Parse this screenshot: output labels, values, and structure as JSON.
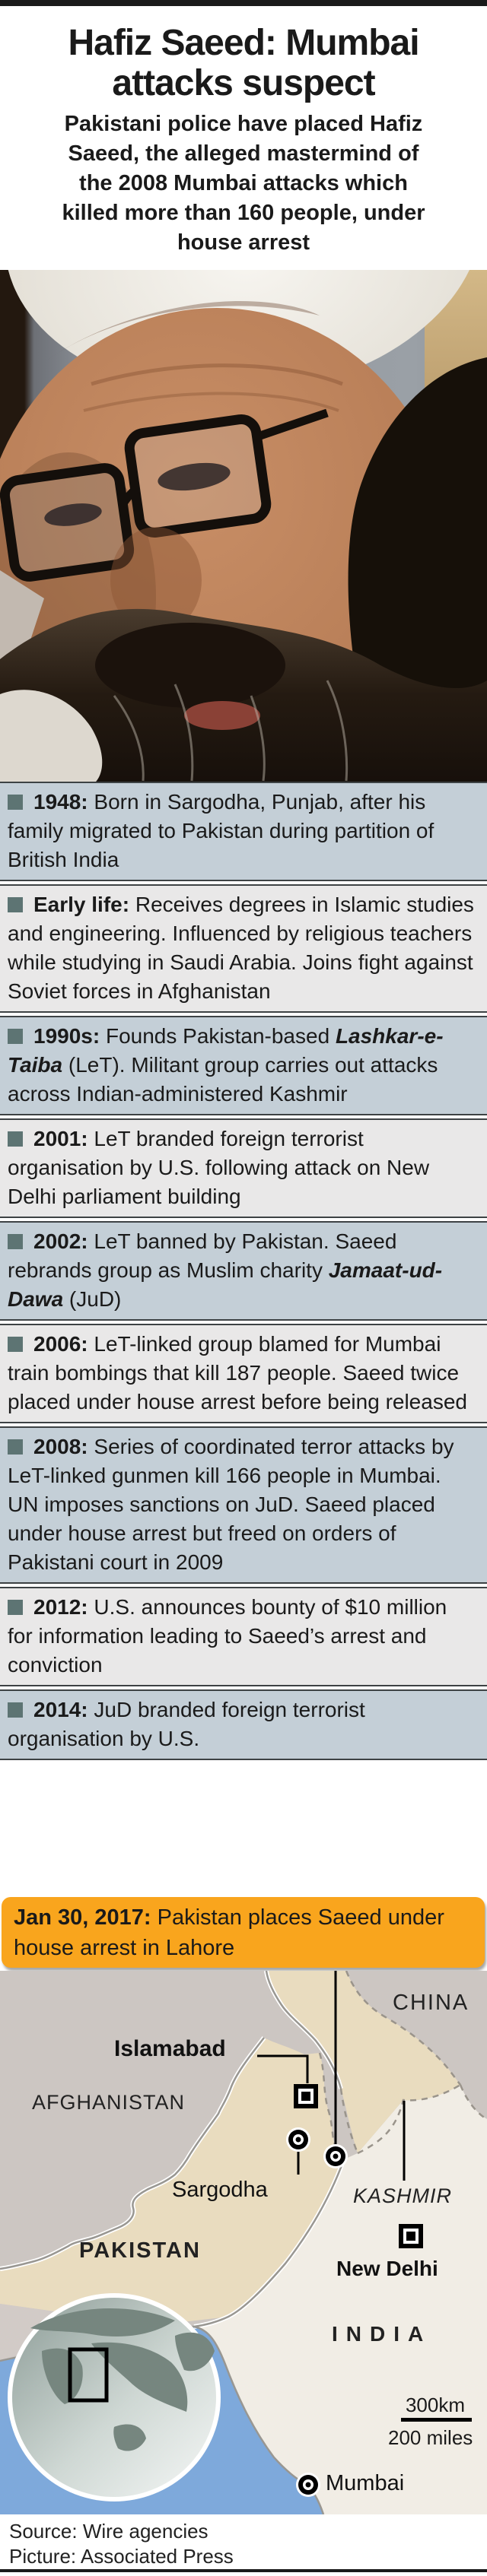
{
  "masthead": {
    "title": "Hafiz Saeed: Mumbai\nattacks suspect",
    "subtitle": "Pakistani police have placed Hafiz\nSaeed, the alleged mastermind of\nthe 2008 Mumbai attacks which\nkilled more than 160 people, under\nhouse arrest"
  },
  "timeline": [
    {
      "variant": "blue",
      "segments": [
        {
          "text": "1948:",
          "style": "bold"
        },
        {
          "text": " Born in Sargodha, Punjab, after his family migrated to Pakistan during partition of British India",
          "style": "normal"
        }
      ]
    },
    {
      "variant": "gray",
      "segments": [
        {
          "text": "Early life:",
          "style": "bold"
        },
        {
          "text": " Receives degrees in Islamic studies and engineering. Influenced by religious teachers while studying in Saudi Arabia. Joins fight against Soviet forces in Afghanistan",
          "style": "normal"
        }
      ]
    },
    {
      "variant": "blue",
      "segments": [
        {
          "text": "1990s:",
          "style": "bold"
        },
        {
          "text": " Founds Pakistan-based ",
          "style": "normal"
        },
        {
          "text": "Lashkar-e-Taiba",
          "style": "bolditalic"
        },
        {
          "text": " (LeT). Militant group carries out attacks across Indian-administered Kashmir",
          "style": "normal"
        }
      ]
    },
    {
      "variant": "gray",
      "segments": [
        {
          "text": "2001:",
          "style": "bold"
        },
        {
          "text": " LeT branded foreign terrorist organisation by U.S. following attack on New Delhi parliament building",
          "style": "normal"
        }
      ]
    },
    {
      "variant": "blue",
      "segments": [
        {
          "text": "2002:",
          "style": "bold"
        },
        {
          "text": " LeT banned by Pakistan. Saeed rebrands group as Muslim charity ",
          "style": "normal"
        },
        {
          "text": "Jamaat-ud-Dawa",
          "style": "bolditalic"
        },
        {
          "text": " (JuD)",
          "style": "normal"
        }
      ]
    },
    {
      "variant": "gray",
      "segments": [
        {
          "text": "2006:",
          "style": "bold"
        },
        {
          "text": " LeT-linked group blamed for Mumbai train bombings that kill 187 people. Saeed twice placed under house arrest before being released",
          "style": "normal"
        }
      ]
    },
    {
      "variant": "blue",
      "segments": [
        {
          "text": "2008:",
          "style": "bold"
        },
        {
          "text": " Series of coordinated terror attacks by LeT-linked gunmen kill 166 people in Mumbai. UN imposes sanctions on JuD. Saeed placed under house arrest but freed on orders of Pakistani court in 2009",
          "style": "normal"
        }
      ]
    },
    {
      "variant": "gray",
      "segments": [
        {
          "text": "2012:",
          "style": "bold"
        },
        {
          "text": " U.S. announces bounty of $10 million for information leading to Saeed’s arrest and conviction",
          "style": "normal"
        }
      ]
    },
    {
      "variant": "blue",
      "segments": [
        {
          "text": "2014:",
          "style": "bold"
        },
        {
          "text": " JuD branded foreign terrorist organisation by U.S.",
          "style": "normal"
        }
      ]
    }
  ],
  "highlight": {
    "segments": [
      {
        "text": "Jan 30, 2017:",
        "style": "bold"
      },
      {
        "text": " Pakistan places Saeed under house arrest in Lahore",
        "style": "normal"
      }
    ],
    "color": "#f9a51d"
  },
  "map": {
    "labels": {
      "china": "CHINA",
      "islamabad": "Islamabad",
      "afghanistan": "AFGHANISTAN",
      "sargodha": "Sargodha",
      "kashmir": "KASHMIR",
      "pakistan": "PAKISTAN",
      "new_delhi": "New Delhi",
      "india": "INDIA",
      "mumbai": "Mumbai"
    },
    "scale": {
      "km": "300km",
      "miles": "200 miles"
    },
    "colors": {
      "land_gray": "#ccc6c2",
      "pakistan_tan": "#e9dcbf",
      "india_cream": "#f1ede5",
      "water": "#7ea9db"
    }
  },
  "footer": {
    "source": "Source: Wire agencies",
    "picture": "Picture: Associated Press"
  },
  "colors": {
    "box_blue": "#c4cfd7",
    "box_gray": "#e9e8e8",
    "bullet": "#5d7473",
    "accent_orange": "#f9a51d",
    "bar_black": "#1a1a1a"
  }
}
